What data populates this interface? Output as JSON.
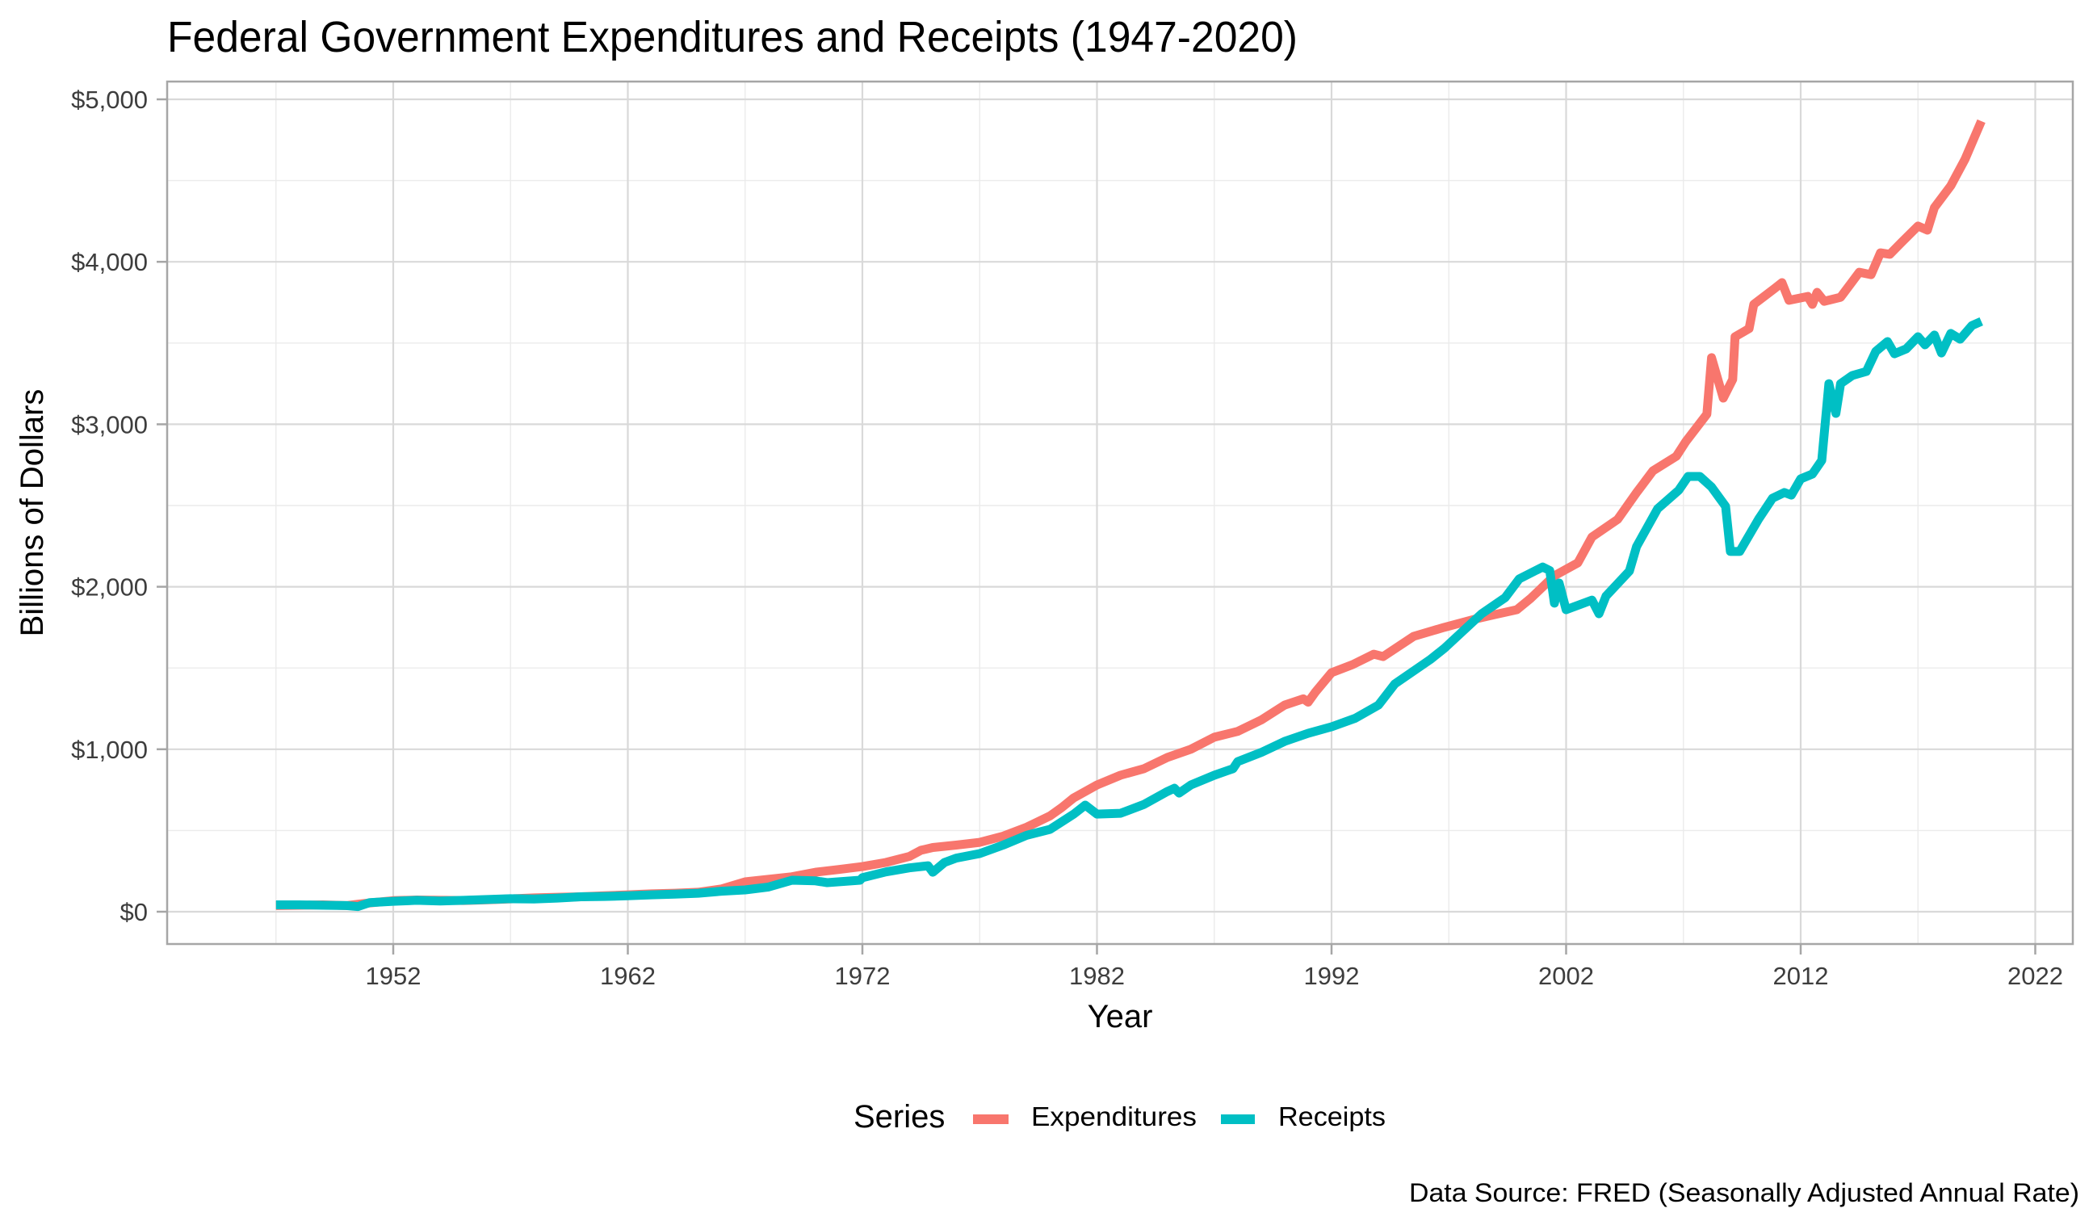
{
  "chart_data": {
    "type": "line",
    "title": "Federal Government Expenditures and Receipts (1947-2020)",
    "xlabel": "Year",
    "ylabel": "Billions of Dollars",
    "caption": "Data Source: FRED (Seasonally Adjusted Annual Rate)",
    "xlim": [
      1943.9,
      2024.6
    ],
    "ylim": [
      -200,
      5200
    ],
    "x_ticks": [
      1952,
      1962,
      1972,
      1982,
      1992,
      2002,
      2012,
      2022
    ],
    "x_tick_labels": [
      "1952",
      "1962",
      "1972",
      "1982",
      "1992",
      "2002",
      "2012",
      "2022"
    ],
    "x_minor_ticks": [
      1947,
      1957,
      1967,
      1977,
      1987,
      1997,
      2007,
      2017
    ],
    "y_ticks": [
      0,
      1000,
      2000,
      3000,
      4000,
      5000
    ],
    "y_tick_labels": [
      "$0",
      "$1,000",
      "$2,000",
      "$3,000",
      "$4,000",
      "$5,000"
    ],
    "y_minor_ticks": [
      500,
      1500,
      2500,
      3500,
      4500
    ],
    "grid": true,
    "legend": {
      "title": "Series",
      "position": "bottom",
      "entries": [
        "Expenditures",
        "Receipts"
      ]
    },
    "series": [
      {
        "name": "Expenditures",
        "color": "#F8766D",
        "x": [
          1947.0,
          1948.0,
          1949.0,
          1950.0,
          1950.5,
          1951.0,
          1952.0,
          1953.0,
          1954.0,
          1955.0,
          1956.0,
          1957.0,
          1958.0,
          1959.0,
          1960.0,
          1961.0,
          1962.0,
          1963.0,
          1964.0,
          1965.0,
          1966.0,
          1967.0,
          1968.0,
          1969.0,
          1970.0,
          1971.0,
          1972.0,
          1973.0,
          1974.0,
          1974.5,
          1975.0,
          1976.0,
          1977.0,
          1978.0,
          1979.0,
          1980.0,
          1980.5,
          1981.0,
          1982.0,
          1983.0,
          1984.0,
          1985.0,
          1986.0,
          1987.0,
          1988.0,
          1989.0,
          1990.0,
          1990.8,
          1991.0,
          1991.3,
          1992.0,
          1992.9,
          1993.8,
          1994.2,
          1995.5,
          1996.8,
          1998.1,
          1999.0,
          1999.9,
          2000.5,
          2001.5,
          2002.5,
          2003.1,
          2004.2,
          2005.0,
          2005.7,
          2006.7,
          2007.1,
          2008.0,
          2008.2,
          2008.7,
          2009.1,
          2009.2,
          2009.8,
          2010.0,
          2010.9,
          2011.2,
          2011.5,
          2012.3,
          2012.5,
          2012.7,
          2013.0,
          2013.7,
          2014.5,
          2015.0,
          2015.4,
          2015.8,
          2016.3,
          2017.0,
          2017.4,
          2017.7,
          2018.4,
          2019.0,
          2019.7
        ],
        "y": [
          38,
          40,
          42,
          38,
          46,
          54,
          68,
          72,
          70,
          69,
          73,
          79,
          85,
          89,
          92,
          98,
          104,
          110,
          114,
          120,
          140,
          184,
          200,
          215,
          243,
          260,
          278,
          303,
          340,
          378,
          395,
          410,
          427,
          465,
          520,
          590,
          641,
          700,
          780,
          840,
          880,
          950,
          1000,
          1074,
          1110,
          1180,
          1272,
          1310,
          1290,
          1350,
          1471,
          1521,
          1585,
          1570,
          1695,
          1750,
          1800,
          1830,
          1859,
          1930,
          2068,
          2147,
          2306,
          2415,
          2579,
          2713,
          2803,
          2893,
          3062,
          3410,
          3161,
          3276,
          3539,
          3589,
          3738,
          3837,
          3872,
          3763,
          3787,
          3738,
          3812,
          3757,
          3782,
          3936,
          3921,
          4055,
          4046,
          4120,
          4220,
          4195,
          4334,
          4468,
          4630,
          4866
        ]
      },
      {
        "name": "Receipts",
        "color": "#00BFC4",
        "x": [
          1947.0,
          1948.0,
          1949.0,
          1950.0,
          1950.5,
          1951.0,
          1952.0,
          1953.0,
          1954.0,
          1955.0,
          1956.0,
          1957.0,
          1958.0,
          1959.0,
          1960.0,
          1961.0,
          1962.0,
          1963.0,
          1964.0,
          1965.0,
          1966.0,
          1967.0,
          1968.0,
          1969.0,
          1970.0,
          1970.5,
          1971.9,
          1972.0,
          1973.0,
          1974.0,
          1974.8,
          1975.0,
          1975.5,
          1976.0,
          1977.0,
          1978.0,
          1979.0,
          1980.0,
          1981.0,
          1981.5,
          1982.0,
          1983.0,
          1984.0,
          1985.0,
          1985.3,
          1985.5,
          1986.0,
          1987.0,
          1987.8,
          1988.0,
          1989.0,
          1990.0,
          1991.0,
          1992.0,
          1993.0,
          1994.0,
          1994.7,
          1996.2,
          1996.8,
          1998.4,
          1999.4,
          2000.0,
          2001.0,
          2001.3,
          2001.5,
          2001.7,
          2002.0,
          2003.1,
          2003.4,
          2003.7,
          2004.7,
          2005.0,
          2005.9,
          2006.8,
          2007.2,
          2007.7,
          2008.2,
          2008.8,
          2009.0,
          2009.4,
          2010.2,
          2010.8,
          2011.3,
          2011.6,
          2012.0,
          2012.5,
          2012.9,
          2013.2,
          2013.5,
          2013.7,
          2014.2,
          2014.8,
          2015.2,
          2015.7,
          2016.0,
          2016.5,
          2017.0,
          2017.3,
          2017.7,
          2018.0,
          2018.4,
          2018.8,
          2019.3,
          2019.7
        ],
        "y": [
          42,
          42,
          40,
          38,
          32,
          56,
          64,
          70,
          66,
          70,
          75,
          80,
          78,
          84,
          92,
          94,
          98,
          104,
          108,
          114,
          126,
          134,
          152,
          194,
          190,
          179,
          194,
          209,
          245,
          270,
          283,
          243,
          303,
          330,
          358,
          410,
          470,
          507,
          600,
          656,
          601,
          606,
          660,
          740,
          760,
          730,
          780,
          840,
          880,
          924,
          980,
          1048,
          1098,
          1138,
          1190,
          1272,
          1402,
          1551,
          1620,
          1834,
          1933,
          2048,
          2122,
          2100,
          1899,
          2023,
          1859,
          1918,
          1834,
          1943,
          2097,
          2247,
          2480,
          2594,
          2679,
          2679,
          2614,
          2495,
          2217,
          2217,
          2415,
          2545,
          2580,
          2564,
          2664,
          2694,
          2778,
          3250,
          3067,
          3250,
          3300,
          3325,
          3449,
          3509,
          3434,
          3464,
          3539,
          3489,
          3549,
          3439,
          3559,
          3524,
          3608,
          3633
        ]
      }
    ]
  }
}
